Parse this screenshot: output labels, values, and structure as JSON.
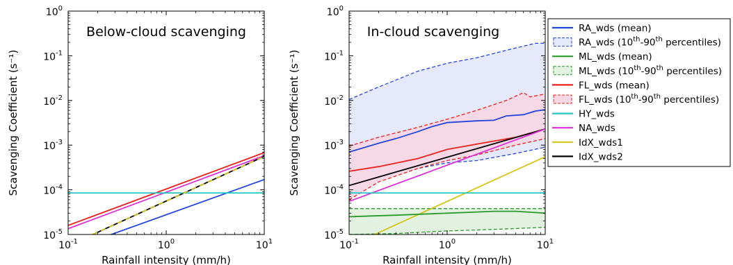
{
  "chart_data": [
    {
      "type": "line",
      "title": "Below-cloud scavenging",
      "xlabel": "Rainfall intensity (mm/h)",
      "ylabel": "Scavenging Coefficient (s⁻¹)",
      "xscale": "log",
      "yscale": "log",
      "xlim": [
        0.1,
        10
      ],
      "ylim": [
        1e-05,
        1
      ],
      "x_ticks": [
        {
          "base": "10",
          "exp": "-1"
        },
        {
          "base": "10",
          "exp": "0"
        },
        {
          "base": "10",
          "exp": "1"
        }
      ],
      "y_ticks": [
        {
          "base": "10",
          "exp": "-5"
        },
        {
          "base": "10",
          "exp": "-4"
        },
        {
          "base": "10",
          "exp": "-3"
        },
        {
          "base": "10",
          "exp": "-2"
        },
        {
          "base": "10",
          "exp": "-1"
        },
        {
          "base": "10",
          "exp": "0"
        }
      ],
      "grid": false,
      "series": [
        {
          "key": "FL_wds",
          "color": "#e8221c",
          "points": [
            [
              0.1,
              1.6e-05
            ],
            [
              10,
              0.00068
            ]
          ]
        },
        {
          "key": "NA_wds",
          "color": "#dd2ed8",
          "points": [
            [
              0.1,
              1.35e-05
            ],
            [
              10,
              0.00058
            ]
          ]
        },
        {
          "key": "IdX_wds1",
          "color": "#d6c31c",
          "dashed_over": "IdX_wds2",
          "points": [
            [
              0.1,
              5.6e-06
            ],
            [
              10,
              0.00056
            ]
          ]
        },
        {
          "key": "IdX_wds2",
          "color": "#000000",
          "points": [
            [
              0.1,
              5.6e-06
            ],
            [
              10,
              0.00056
            ]
          ]
        },
        {
          "key": "RA_wds",
          "color": "#2244dd",
          "points": [
            [
              0.1,
              4.5e-06
            ],
            [
              10,
              0.00017
            ]
          ]
        },
        {
          "key": "HY_wds",
          "color": "#26c6c6",
          "points": [
            [
              0.1,
              8.5e-05
            ],
            [
              10,
              8.5e-05
            ]
          ]
        }
      ]
    },
    {
      "type": "line",
      "title": "In-cloud scavenging",
      "xlabel": "Rainfall intensity (mm/h)",
      "ylabel": "Scavenging Coefficient (s⁻¹)",
      "xscale": "log",
      "yscale": "log",
      "xlim": [
        0.1,
        10
      ],
      "ylim": [
        1e-05,
        1
      ],
      "x_ticks": [
        {
          "base": "10",
          "exp": "-1"
        },
        {
          "base": "10",
          "exp": "0"
        },
        {
          "base": "10",
          "exp": "1"
        }
      ],
      "y_ticks": [
        {
          "base": "10",
          "exp": "-5"
        },
        {
          "base": "10",
          "exp": "-4"
        },
        {
          "base": "10",
          "exp": "-3"
        },
        {
          "base": "10",
          "exp": "-2"
        },
        {
          "base": "10",
          "exp": "-1"
        },
        {
          "base": "10",
          "exp": "0"
        }
      ],
      "grid": false,
      "bands": [
        {
          "key": "RA_wds_pct",
          "color": "#2244dd",
          "fill": "#e6e8fb",
          "low": [
            [
              0.1,
              6e-05
            ],
            [
              0.2,
              0.00016
            ],
            [
              0.5,
              0.0003
            ],
            [
              1,
              0.0004
            ],
            [
              2,
              0.00045
            ],
            [
              5,
              0.00065
            ],
            [
              10,
              0.0009
            ]
          ],
          "high": [
            [
              0.1,
              0.0105
            ],
            [
              0.2,
              0.02
            ],
            [
              0.5,
              0.045
            ],
            [
              1,
              0.068
            ],
            [
              2,
              0.09
            ],
            [
              5,
              0.15
            ],
            [
              8,
              0.19
            ],
            [
              10,
              0.19
            ]
          ]
        },
        {
          "key": "FL_wds_pct",
          "color": "#e8221c",
          "fill": "#f6d8e6",
          "low": [
            [
              0.1,
              6e-05
            ],
            [
              0.2,
              0.00015
            ],
            [
              0.5,
              0.0003
            ],
            [
              1,
              0.00045
            ],
            [
              2,
              0.0006
            ],
            [
              5,
              0.001
            ],
            [
              10,
              0.0014
            ]
          ],
          "high": [
            [
              0.1,
              0.00095
            ],
            [
              0.2,
              0.0015
            ],
            [
              0.5,
              0.0025
            ],
            [
              1,
              0.0038
            ],
            [
              2,
              0.006
            ],
            [
              4,
              0.01
            ],
            [
              6,
              0.015
            ],
            [
              7,
              0.012
            ],
            [
              10,
              0.014
            ]
          ]
        },
        {
          "key": "ML_wds_pct",
          "color": "#2a9a2a",
          "fill": "#e2f1e0",
          "low": [
            [
              0.1,
              1e-05
            ],
            [
              0.3,
              1.05e-05
            ],
            [
              1,
              1.2e-05
            ],
            [
              3,
              1.3e-05
            ],
            [
              10,
              1.45e-05
            ]
          ],
          "high": [
            [
              0.1,
              3.8e-05
            ],
            [
              0.5,
              3.8e-05
            ],
            [
              1,
              3.8e-05
            ],
            [
              3,
              3.8e-05
            ],
            [
              10,
              3.8e-05
            ]
          ]
        }
      ],
      "series": [
        {
          "key": "RA_wds",
          "color": "#2244dd",
          "points": [
            [
              0.1,
              0.0007
            ],
            [
              0.2,
              0.0011
            ],
            [
              0.3,
              0.0014
            ],
            [
              0.5,
              0.002
            ],
            [
              0.7,
              0.0026
            ],
            [
              1,
              0.0032
            ],
            [
              2,
              0.0035
            ],
            [
              3,
              0.0036
            ],
            [
              4,
              0.0045
            ],
            [
              6,
              0.0048
            ],
            [
              8,
              0.0058
            ],
            [
              10,
              0.0062
            ]
          ]
        },
        {
          "key": "FL_wds",
          "color": "#e8221c",
          "points": [
            [
              0.1,
              0.00026
            ],
            [
              0.2,
              0.00033
            ],
            [
              0.5,
              0.0005
            ],
            [
              1,
              0.0008
            ],
            [
              2,
              0.00105
            ],
            [
              5,
              0.0015
            ],
            [
              10,
              0.0023
            ]
          ]
        },
        {
          "key": "IdX_wds2",
          "color": "#000000",
          "points": [
            [
              0.1,
              0.000125
            ],
            [
              10,
              0.0023
            ]
          ]
        },
        {
          "key": "NA_wds",
          "color": "#dd2ed8",
          "points": [
            [
              0.1,
              5.5e-05
            ],
            [
              10,
              0.0023
            ]
          ]
        },
        {
          "key": "IdX_wds1",
          "color": "#d6c31c",
          "points": [
            [
              0.1,
              5.5e-06
            ],
            [
              10,
              0.00055
            ]
          ]
        },
        {
          "key": "HY_wds",
          "color": "#26c6c6",
          "points": [
            [
              0.1,
              8.5e-05
            ],
            [
              10,
              8.5e-05
            ]
          ]
        },
        {
          "key": "ML_wds",
          "color": "#2a9a2a",
          "points": [
            [
              0.1,
              2.5e-05
            ],
            [
              0.3,
              2.7e-05
            ],
            [
              1,
              3e-05
            ],
            [
              3,
              3.3e-05
            ],
            [
              5,
              3.3e-05
            ],
            [
              10,
              3e-05
            ]
          ]
        }
      ]
    }
  ],
  "legend": {
    "placement": "outside-right",
    "entries": [
      {
        "key": "RA_wds",
        "style": "line",
        "color": "#2244dd",
        "label": "RA_wds (mean)"
      },
      {
        "key": "RA_wds_pct",
        "style": "band",
        "color": "#2244dd",
        "fill": "#e6e8fb",
        "label_pre": "RA_wds (10",
        "sup1": "th",
        "label_mid": "-90",
        "sup2": "th",
        "label_post": " percentiles)"
      },
      {
        "key": "ML_wds",
        "style": "line",
        "color": "#2a9a2a",
        "label": "ML_wds (mean)"
      },
      {
        "key": "ML_wds_pct",
        "style": "band",
        "color": "#2a9a2a",
        "fill": "#e2f1e0",
        "label_pre": "ML_wds (10",
        "sup1": "th",
        "label_mid": "-90",
        "sup2": "th",
        "label_post": " percentiles)"
      },
      {
        "key": "FL_wds",
        "style": "line",
        "color": "#e8221c",
        "label": "FL_wds (mean)"
      },
      {
        "key": "FL_wds_pct",
        "style": "band",
        "color": "#e8221c",
        "fill": "#f6d8e6",
        "label_pre": "FL_wds (10",
        "sup1": "th",
        "label_mid": "-90",
        "sup2": "th",
        "label_post": " percentiles)"
      },
      {
        "key": "HY_wds",
        "style": "line",
        "color": "#26c6c6",
        "label": "HY_wds"
      },
      {
        "key": "NA_wds",
        "style": "line",
        "color": "#dd2ed8",
        "label": "NA_wds"
      },
      {
        "key": "IdX_wds1",
        "style": "line",
        "color": "#d6c31c",
        "label": "IdX_wds1"
      },
      {
        "key": "IdX_wds2",
        "style": "line",
        "color": "#000000",
        "label": "IdX_wds2"
      }
    ]
  }
}
